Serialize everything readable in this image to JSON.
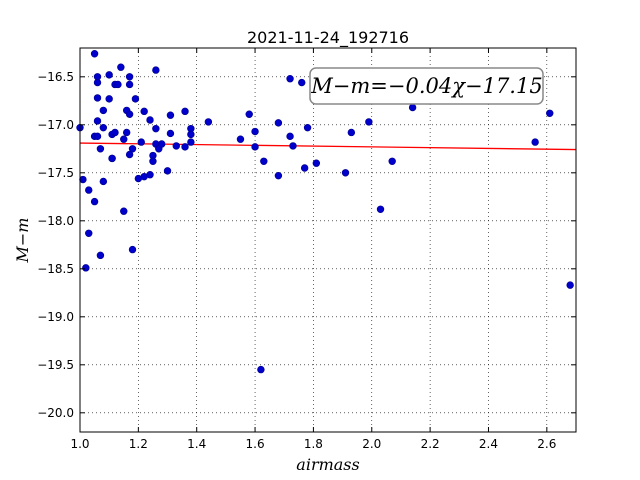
{
  "chart_data": {
    "type": "scatter",
    "title": "2021-11-24_192716",
    "xlabel": "airmass",
    "ylabel": "M−m",
    "xlim": [
      1.0,
      2.7
    ],
    "ylim": [
      -20.2,
      -16.2
    ],
    "y_inverted": true,
    "grid": true,
    "x_ticks": [
      1.0,
      1.2,
      1.4,
      1.6,
      1.8,
      2.0,
      2.2,
      2.4,
      2.6
    ],
    "x_tick_labels": [
      "1.0",
      "1.2",
      "1.4",
      "1.6",
      "1.8",
      "2.0",
      "2.2",
      "2.4",
      "2.6"
    ],
    "y_ticks": [
      -16.5,
      -17.0,
      -17.5,
      -18.0,
      -18.5,
      -19.0,
      -19.5,
      -20.0
    ],
    "y_tick_labels": [
      "−16.5",
      "−17.0",
      "−17.5",
      "−18.0",
      "−18.5",
      "−19.0",
      "−19.5",
      "−20.0"
    ],
    "annotation": "M−m=−0.04χ−17.15",
    "annotation_position": "top-right",
    "point_color": "#0000cc",
    "fit_color": "#ff0000",
    "fit": {
      "slope": -0.04,
      "intercept": -17.15,
      "x_range": [
        1.0,
        2.7
      ]
    },
    "series": [
      {
        "points": [
          [
            1.0,
            -17.03
          ],
          [
            1.01,
            -17.57
          ],
          [
            1.03,
            -17.68
          ],
          [
            1.03,
            -18.13
          ],
          [
            1.02,
            -18.49
          ],
          [
            1.05,
            -17.8
          ],
          [
            1.05,
            -17.12
          ],
          [
            1.05,
            -16.26
          ],
          [
            1.06,
            -16.5
          ],
          [
            1.06,
            -16.56
          ],
          [
            1.06,
            -16.72
          ],
          [
            1.06,
            -16.96
          ],
          [
            1.06,
            -17.12
          ],
          [
            1.07,
            -17.25
          ],
          [
            1.07,
            -18.36
          ],
          [
            1.08,
            -16.85
          ],
          [
            1.08,
            -17.03
          ],
          [
            1.08,
            -17.59
          ],
          [
            1.1,
            -16.48
          ],
          [
            1.1,
            -16.73
          ],
          [
            1.11,
            -17.1
          ],
          [
            1.11,
            -17.35
          ],
          [
            1.11,
            -17.35
          ],
          [
            1.12,
            -16.58
          ],
          [
            1.12,
            -17.08
          ],
          [
            1.13,
            -16.58
          ],
          [
            1.14,
            -16.4
          ],
          [
            1.15,
            -17.15
          ],
          [
            1.15,
            -17.9
          ],
          [
            1.16,
            -16.85
          ],
          [
            1.16,
            -17.08
          ],
          [
            1.17,
            -16.89
          ],
          [
            1.17,
            -17.31
          ],
          [
            1.17,
            -16.5
          ],
          [
            1.17,
            -16.58
          ],
          [
            1.18,
            -17.25
          ],
          [
            1.18,
            -18.3
          ],
          [
            1.19,
            -16.73
          ],
          [
            1.2,
            -17.56
          ],
          [
            1.21,
            -17.18
          ],
          [
            1.22,
            -16.86
          ],
          [
            1.22,
            -17.54
          ],
          [
            1.24,
            -16.95
          ],
          [
            1.24,
            -17.52
          ],
          [
            1.25,
            -17.32
          ],
          [
            1.25,
            -17.38
          ],
          [
            1.26,
            -17.04
          ],
          [
            1.26,
            -17.2
          ],
          [
            1.26,
            -16.43
          ],
          [
            1.27,
            -17.25
          ],
          [
            1.28,
            -17.2
          ],
          [
            1.3,
            -17.48
          ],
          [
            1.31,
            -16.9
          ],
          [
            1.31,
            -17.09
          ],
          [
            1.33,
            -17.22
          ],
          [
            1.36,
            -16.86
          ],
          [
            1.36,
            -17.23
          ],
          [
            1.38,
            -17.04
          ],
          [
            1.38,
            -17.1
          ],
          [
            1.38,
            -17.18
          ],
          [
            1.44,
            -16.97
          ],
          [
            1.55,
            -17.15
          ],
          [
            1.58,
            -16.89
          ],
          [
            1.6,
            -17.07
          ],
          [
            1.6,
            -17.23
          ],
          [
            1.62,
            -19.55
          ],
          [
            1.63,
            -17.38
          ],
          [
            1.68,
            -16.98
          ],
          [
            1.68,
            -17.53
          ],
          [
            1.72,
            -16.52
          ],
          [
            1.72,
            -17.12
          ],
          [
            1.73,
            -17.22
          ],
          [
            1.76,
            -16.56
          ],
          [
            1.77,
            -17.45
          ],
          [
            1.78,
            -17.03
          ],
          [
            1.81,
            -17.4
          ],
          [
            1.91,
            -17.5
          ],
          [
            1.93,
            -17.08
          ],
          [
            1.99,
            -16.97
          ],
          [
            2.03,
            -17.88
          ],
          [
            2.07,
            -17.38
          ],
          [
            2.14,
            -16.82
          ],
          [
            2.56,
            -17.18
          ],
          [
            2.61,
            -16.88
          ],
          [
            2.68,
            -18.67
          ]
        ]
      }
    ]
  }
}
